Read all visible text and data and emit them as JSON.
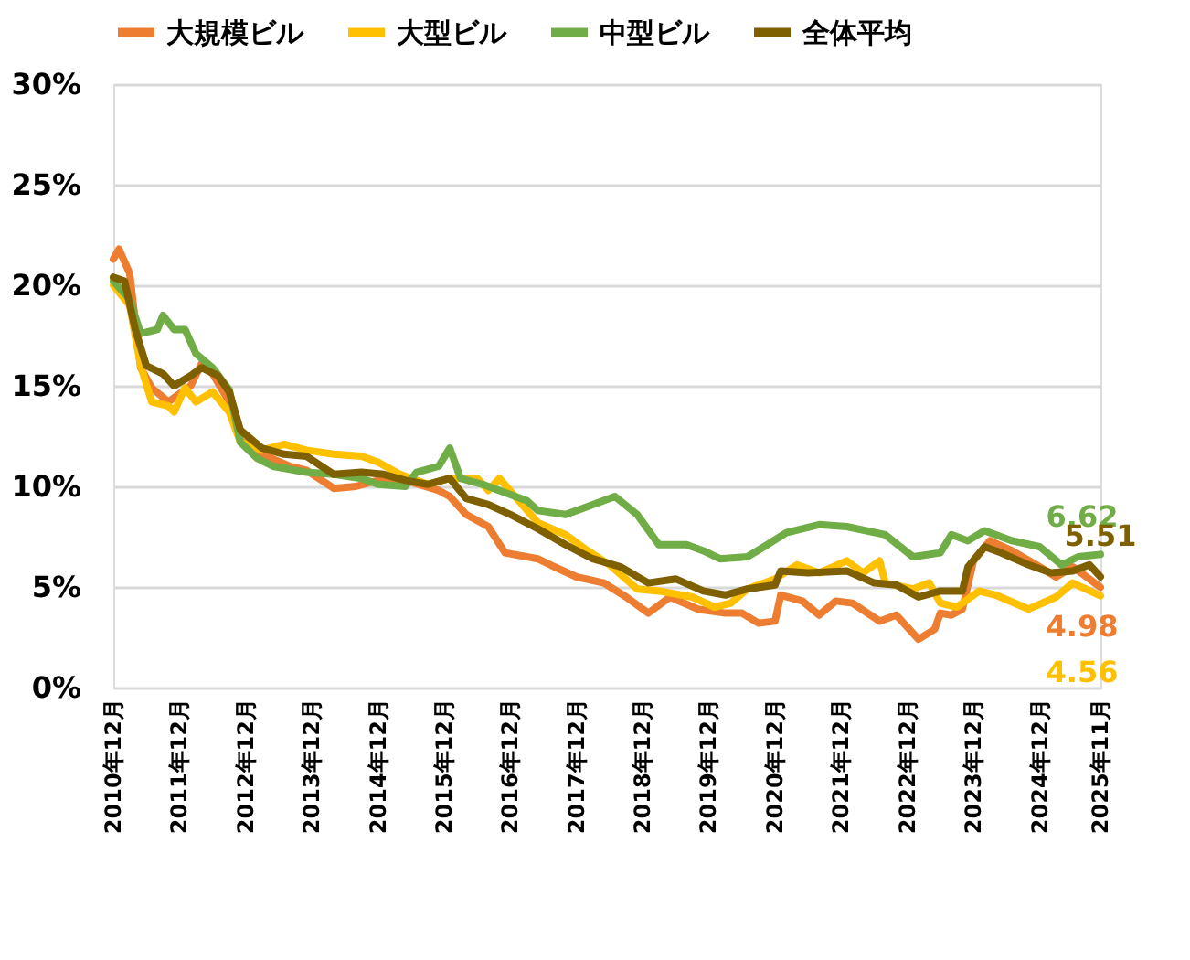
{
  "chart_data": {
    "type": "line",
    "legend": "top",
    "grid": "y",
    "marker": "none",
    "line_style": "solid",
    "xlim": [
      "2010-12",
      "2025-11"
    ],
    "xticks": [
      {
        "value": "2010-12",
        "label": "2010年12月"
      },
      {
        "value": "2011-12",
        "label": "2011年12月"
      },
      {
        "value": "2012-12",
        "label": "2012年12月"
      },
      {
        "value": "2013-12",
        "label": "2013年12月"
      },
      {
        "value": "2014-12",
        "label": "2014年12月"
      },
      {
        "value": "2015-12",
        "label": "2015年12月"
      },
      {
        "value": "2016-12",
        "label": "2016年12月"
      },
      {
        "value": "2017-12",
        "label": "2017年12月"
      },
      {
        "value": "2018-12",
        "label": "2018年12月"
      },
      {
        "value": "2019-12",
        "label": "2019年12月"
      },
      {
        "value": "2020-12",
        "label": "2020年12月"
      },
      {
        "value": "2021-12",
        "label": "2021年12月"
      },
      {
        "value": "2022-12",
        "label": "2022年12月"
      },
      {
        "value": "2023-12",
        "label": "2023年12月"
      },
      {
        "value": "2024-12",
        "label": "2024年12月"
      },
      {
        "value": "2025-11",
        "label": "2025年11月"
      }
    ],
    "ylim": [
      0,
      30
    ],
    "yticks": [
      {
        "value": 0,
        "label": "0%"
      },
      {
        "value": 5,
        "label": "5%"
      },
      {
        "value": 10,
        "label": "10%"
      },
      {
        "value": 15,
        "label": "15%"
      },
      {
        "value": 20,
        "label": "20%"
      },
      {
        "value": 25,
        "label": "25%"
      },
      {
        "value": 30,
        "label": "30%"
      }
    ],
    "series": [
      {
        "name": "大規模ビル",
        "color": "#ed7d31",
        "x": [
          "2010-12",
          "2011-01",
          "2011-03",
          "2011-05",
          "2011-07",
          "2011-10",
          "2012-02",
          "2012-04",
          "2012-06",
          "2012-09",
          "2012-11",
          "2013-03",
          "2013-08",
          "2013-11",
          "2014-04",
          "2014-08",
          "2014-12",
          "2015-05",
          "2015-11",
          "2016-01",
          "2016-04",
          "2016-08",
          "2016-11",
          "2017-05",
          "2017-08",
          "2017-12",
          "2018-05",
          "2018-09",
          "2019-01",
          "2019-05",
          "2019-10",
          "2020-03",
          "2020-06",
          "2020-09",
          "2020-12",
          "2021-01",
          "2021-05",
          "2021-08",
          "2021-11",
          "2022-02",
          "2022-07",
          "2022-10",
          "2023-02",
          "2023-05",
          "2023-06",
          "2023-08",
          "2023-10",
          "2023-12",
          "2024-03",
          "2024-07",
          "2024-12",
          "2025-03",
          "2025-06",
          "2025-09",
          "2025-11"
        ],
        "values": [
          21.3,
          21.8,
          20.6,
          15.9,
          14.9,
          14.2,
          15.0,
          16.1,
          15.6,
          14.2,
          12.3,
          11.6,
          11.0,
          10.8,
          9.9,
          10.0,
          10.3,
          10.3,
          9.8,
          9.5,
          8.6,
          8.0,
          6.7,
          6.4,
          6.0,
          5.5,
          5.2,
          4.5,
          3.7,
          4.5,
          3.9,
          3.7,
          3.7,
          3.2,
          3.3,
          4.6,
          4.3,
          3.6,
          4.3,
          4.2,
          3.3,
          3.6,
          2.4,
          2.9,
          3.7,
          3.6,
          3.9,
          6.3,
          7.3,
          6.8,
          6.0,
          5.5,
          6.0,
          5.4,
          4.98
        ],
        "value_labels": [
          null,
          null,
          null,
          null,
          null,
          null,
          null,
          null,
          null,
          null,
          null,
          null,
          null,
          null,
          null,
          null,
          null,
          null,
          null,
          null,
          null,
          null,
          null,
          null,
          null,
          null,
          null,
          null,
          null,
          null,
          null,
          null,
          null,
          null,
          null,
          null,
          null,
          null,
          null,
          null,
          null,
          null,
          null,
          null,
          null,
          null,
          null,
          null,
          null,
          null,
          null,
          null,
          null,
          null,
          "4.98"
        ]
      },
      {
        "name": "大型ビル",
        "color": "#ffc000",
        "x": [
          "2010-12",
          "2011-03",
          "2011-05",
          "2011-07",
          "2011-10",
          "2011-11",
          "2012-01",
          "2012-03",
          "2012-06",
          "2012-09",
          "2012-11",
          "2013-03",
          "2013-07",
          "2013-11",
          "2014-04",
          "2014-09",
          "2014-12",
          "2015-04",
          "2015-09",
          "2016-01",
          "2016-06",
          "2016-08",
          "2016-10",
          "2017-05",
          "2017-10",
          "2018-02",
          "2018-06",
          "2018-11",
          "2019-03",
          "2019-09",
          "2020-01",
          "2020-04",
          "2020-07",
          "2020-12",
          "2021-04",
          "2021-08",
          "2022-01",
          "2022-04",
          "2022-07",
          "2022-08",
          "2023-01",
          "2023-04",
          "2023-06",
          "2023-09",
          "2024-01",
          "2024-04",
          "2024-10",
          "2025-03",
          "2025-06",
          "2025-11"
        ],
        "values": [
          20.0,
          19.0,
          16.0,
          14.2,
          14.0,
          13.7,
          14.9,
          14.2,
          14.7,
          13.7,
          12.2,
          11.8,
          12.1,
          11.8,
          11.6,
          11.5,
          11.2,
          10.6,
          10.1,
          10.4,
          10.4,
          9.8,
          10.4,
          8.2,
          7.6,
          6.8,
          6.1,
          4.9,
          4.8,
          4.5,
          4.0,
          4.2,
          4.9,
          5.4,
          6.1,
          5.7,
          6.3,
          5.7,
          6.3,
          5.2,
          4.9,
          5.2,
          4.2,
          4.0,
          4.8,
          4.6,
          3.9,
          4.5,
          5.2,
          4.56
        ],
        "value_labels": [
          null,
          null,
          null,
          null,
          null,
          null,
          null,
          null,
          null,
          null,
          null,
          null,
          null,
          null,
          null,
          null,
          null,
          null,
          null,
          null,
          null,
          null,
          null,
          null,
          null,
          null,
          null,
          null,
          null,
          null,
          null,
          null,
          null,
          null,
          null,
          null,
          null,
          null,
          null,
          null,
          null,
          null,
          null,
          null,
          null,
          null,
          null,
          null,
          null,
          "4.56"
        ]
      },
      {
        "name": "中型ビル",
        "color": "#70ad47",
        "x": [
          "2010-12",
          "2011-03",
          "2011-05",
          "2011-08",
          "2011-09",
          "2011-11",
          "2012-01",
          "2012-03",
          "2012-06",
          "2012-09",
          "2012-11",
          "2013-02",
          "2013-05",
          "2013-11",
          "2014-04",
          "2014-09",
          "2014-12",
          "2015-05",
          "2015-07",
          "2015-11",
          "2016-01",
          "2016-03",
          "2016-07",
          "2016-10",
          "2017-03",
          "2017-05",
          "2017-10",
          "2018-01",
          "2018-07",
          "2018-11",
          "2019-03",
          "2019-08",
          "2019-11",
          "2020-02",
          "2020-07",
          "2020-10",
          "2021-02",
          "2021-08",
          "2022-01",
          "2022-08",
          "2023-01",
          "2023-06",
          "2023-08",
          "2023-11",
          "2024-02",
          "2024-07",
          "2024-12",
          "2025-04",
          "2025-07",
          "2025-11"
        ],
        "values": [
          20.2,
          19.3,
          17.6,
          17.8,
          18.5,
          17.8,
          17.8,
          16.6,
          15.9,
          14.8,
          12.2,
          11.4,
          11.0,
          10.7,
          10.6,
          10.4,
          10.1,
          10.0,
          10.7,
          11.0,
          11.9,
          10.4,
          10.1,
          9.8,
          9.3,
          8.8,
          8.6,
          8.9,
          9.5,
          8.6,
          7.1,
          7.1,
          6.8,
          6.4,
          6.5,
          7.0,
          7.7,
          8.1,
          8.0,
          7.6,
          6.5,
          6.7,
          7.6,
          7.3,
          7.8,
          7.3,
          7.0,
          6.1,
          6.5,
          6.62
        ],
        "value_labels": [
          null,
          null,
          null,
          null,
          null,
          null,
          null,
          null,
          null,
          null,
          null,
          null,
          null,
          null,
          null,
          null,
          null,
          null,
          null,
          null,
          null,
          null,
          null,
          null,
          null,
          null,
          null,
          null,
          null,
          null,
          null,
          null,
          null,
          null,
          null,
          null,
          null,
          null,
          null,
          null,
          null,
          null,
          null,
          null,
          null,
          null,
          null,
          null,
          null,
          "6.62"
        ]
      },
      {
        "name": "全体平均",
        "color": "#7f6000",
        "x": [
          "2010-12",
          "2011-02",
          "2011-04",
          "2011-06",
          "2011-09",
          "2011-11",
          "2012-02",
          "2012-04",
          "2012-07",
          "2012-09",
          "2012-11",
          "2013-03",
          "2013-07",
          "2013-11",
          "2014-04",
          "2014-09",
          "2015-01",
          "2015-05",
          "2015-09",
          "2016-01",
          "2016-04",
          "2016-08",
          "2016-12",
          "2017-05",
          "2017-10",
          "2018-03",
          "2018-08",
          "2019-01",
          "2019-06",
          "2019-11",
          "2020-03",
          "2020-07",
          "2020-12",
          "2021-01",
          "2021-06",
          "2022-01",
          "2022-06",
          "2022-10",
          "2023-02",
          "2023-06",
          "2023-10",
          "2023-11",
          "2024-02",
          "2024-05",
          "2024-10",
          "2025-02",
          "2025-06",
          "2025-09",
          "2025-11"
        ],
        "values": [
          20.4,
          20.2,
          17.8,
          16.0,
          15.6,
          15.0,
          15.5,
          15.9,
          15.5,
          14.7,
          12.8,
          11.9,
          11.6,
          11.5,
          10.6,
          10.7,
          10.6,
          10.3,
          10.1,
          10.4,
          9.4,
          9.1,
          8.6,
          7.9,
          7.1,
          6.4,
          6.0,
          5.2,
          5.4,
          4.8,
          4.6,
          4.9,
          5.1,
          5.8,
          5.7,
          5.8,
          5.2,
          5.1,
          4.5,
          4.8,
          4.8,
          6.0,
          7.0,
          6.7,
          6.1,
          5.7,
          5.8,
          6.1,
          5.51
        ],
        "value_labels": [
          null,
          null,
          null,
          null,
          null,
          null,
          null,
          null,
          null,
          null,
          null,
          null,
          null,
          null,
          null,
          null,
          null,
          null,
          null,
          null,
          null,
          null,
          null,
          null,
          null,
          null,
          null,
          null,
          null,
          null,
          null,
          null,
          null,
          null,
          null,
          null,
          null,
          null,
          null,
          null,
          null,
          null,
          null,
          null,
          null,
          null,
          null,
          null,
          "5.51"
        ]
      }
    ]
  }
}
